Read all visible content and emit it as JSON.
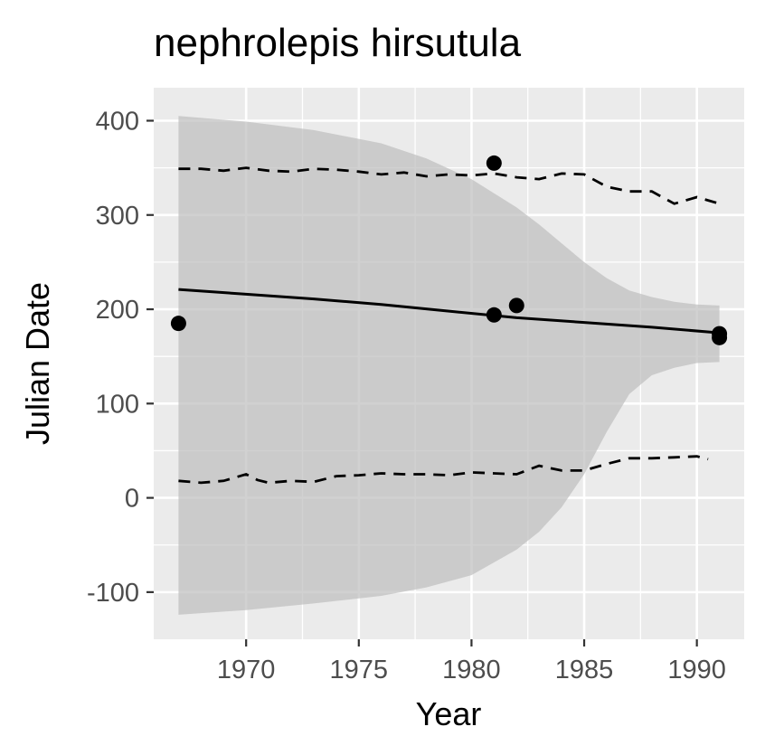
{
  "chart_data": {
    "type": "scatter",
    "title": "nephrolepis hirsutula",
    "xlabel": "Year",
    "ylabel": "Julian Date",
    "xlim": [
      1965.9,
      1992.1
    ],
    "ylim": [
      -150,
      435
    ],
    "xticks": [
      1970,
      1975,
      1980,
      1985,
      1990
    ],
    "yticks": [
      400,
      300,
      200,
      100,
      0,
      -100
    ],
    "xtick_labels": [
      "1970",
      "1975",
      "1980",
      "1985",
      "1990"
    ],
    "ytick_labels": [
      "400",
      "300",
      "200",
      "100",
      "0",
      "-100"
    ],
    "grid": true,
    "colors": {
      "panel": "#ebebeb",
      "grid": "#ffffff",
      "ribbon": "#bdbdbd",
      "line": "#000000",
      "points": "#000000",
      "ticks": "#333333"
    },
    "points": [
      {
        "x": 1967,
        "y": 185
      },
      {
        "x": 1981,
        "y": 355
      },
      {
        "x": 1981,
        "y": 194
      },
      {
        "x": 1982,
        "y": 204
      },
      {
        "x": 1991,
        "y": 174
      },
      {
        "x": 1991,
        "y": 170
      }
    ],
    "fit_line": {
      "x": [
        1967,
        1970,
        1973,
        1976,
        1979,
        1982,
        1985,
        1988,
        1991
      ],
      "y": [
        221,
        216,
        211,
        205,
        198,
        191,
        186,
        181,
        175
      ]
    },
    "ribbon": {
      "x": [
        1967,
        1970,
        1973,
        1976,
        1978,
        1980,
        1982,
        1983,
        1984,
        1985,
        1986,
        1987,
        1988,
        1989,
        1990,
        1991
      ],
      "upper": [
        405,
        399,
        390,
        376,
        360,
        338,
        308,
        290,
        270,
        250,
        233,
        220,
        213,
        208,
        205,
        204
      ],
      "lower": [
        -124,
        -119,
        -112,
        -104,
        -95,
        -82,
        -55,
        -36,
        -10,
        25,
        70,
        110,
        130,
        138,
        143,
        144
      ]
    },
    "quantile_upper": {
      "x": [
        1967,
        1968,
        1969,
        1970,
        1971,
        1972,
        1973,
        1974,
        1975,
        1976,
        1977,
        1978,
        1979,
        1980,
        1981,
        1982,
        1983,
        1984,
        1985,
        1986,
        1987,
        1988,
        1989,
        1990,
        1991
      ],
      "y": [
        349,
        349,
        347,
        350,
        347,
        346,
        349,
        348,
        346,
        343,
        345,
        341,
        343,
        342,
        344,
        340,
        338,
        344,
        343,
        330,
        325,
        325,
        312,
        319,
        312
      ]
    },
    "quantile_lower": {
      "x": [
        1967,
        1968,
        1969,
        1970,
        1970.5,
        1971,
        1972,
        1973,
        1974,
        1975,
        1976,
        1977,
        1978,
        1979,
        1980,
        1981,
        1982,
        1983,
        1984,
        1985,
        1986,
        1987,
        1988,
        1989,
        1990,
        1990.5
      ],
      "y": [
        18,
        16,
        18,
        25,
        19,
        16,
        18,
        17,
        23,
        24,
        26,
        25,
        25,
        24,
        27,
        26,
        25,
        34,
        29,
        29,
        36,
        42,
        42,
        43,
        44,
        41
      ]
    }
  }
}
